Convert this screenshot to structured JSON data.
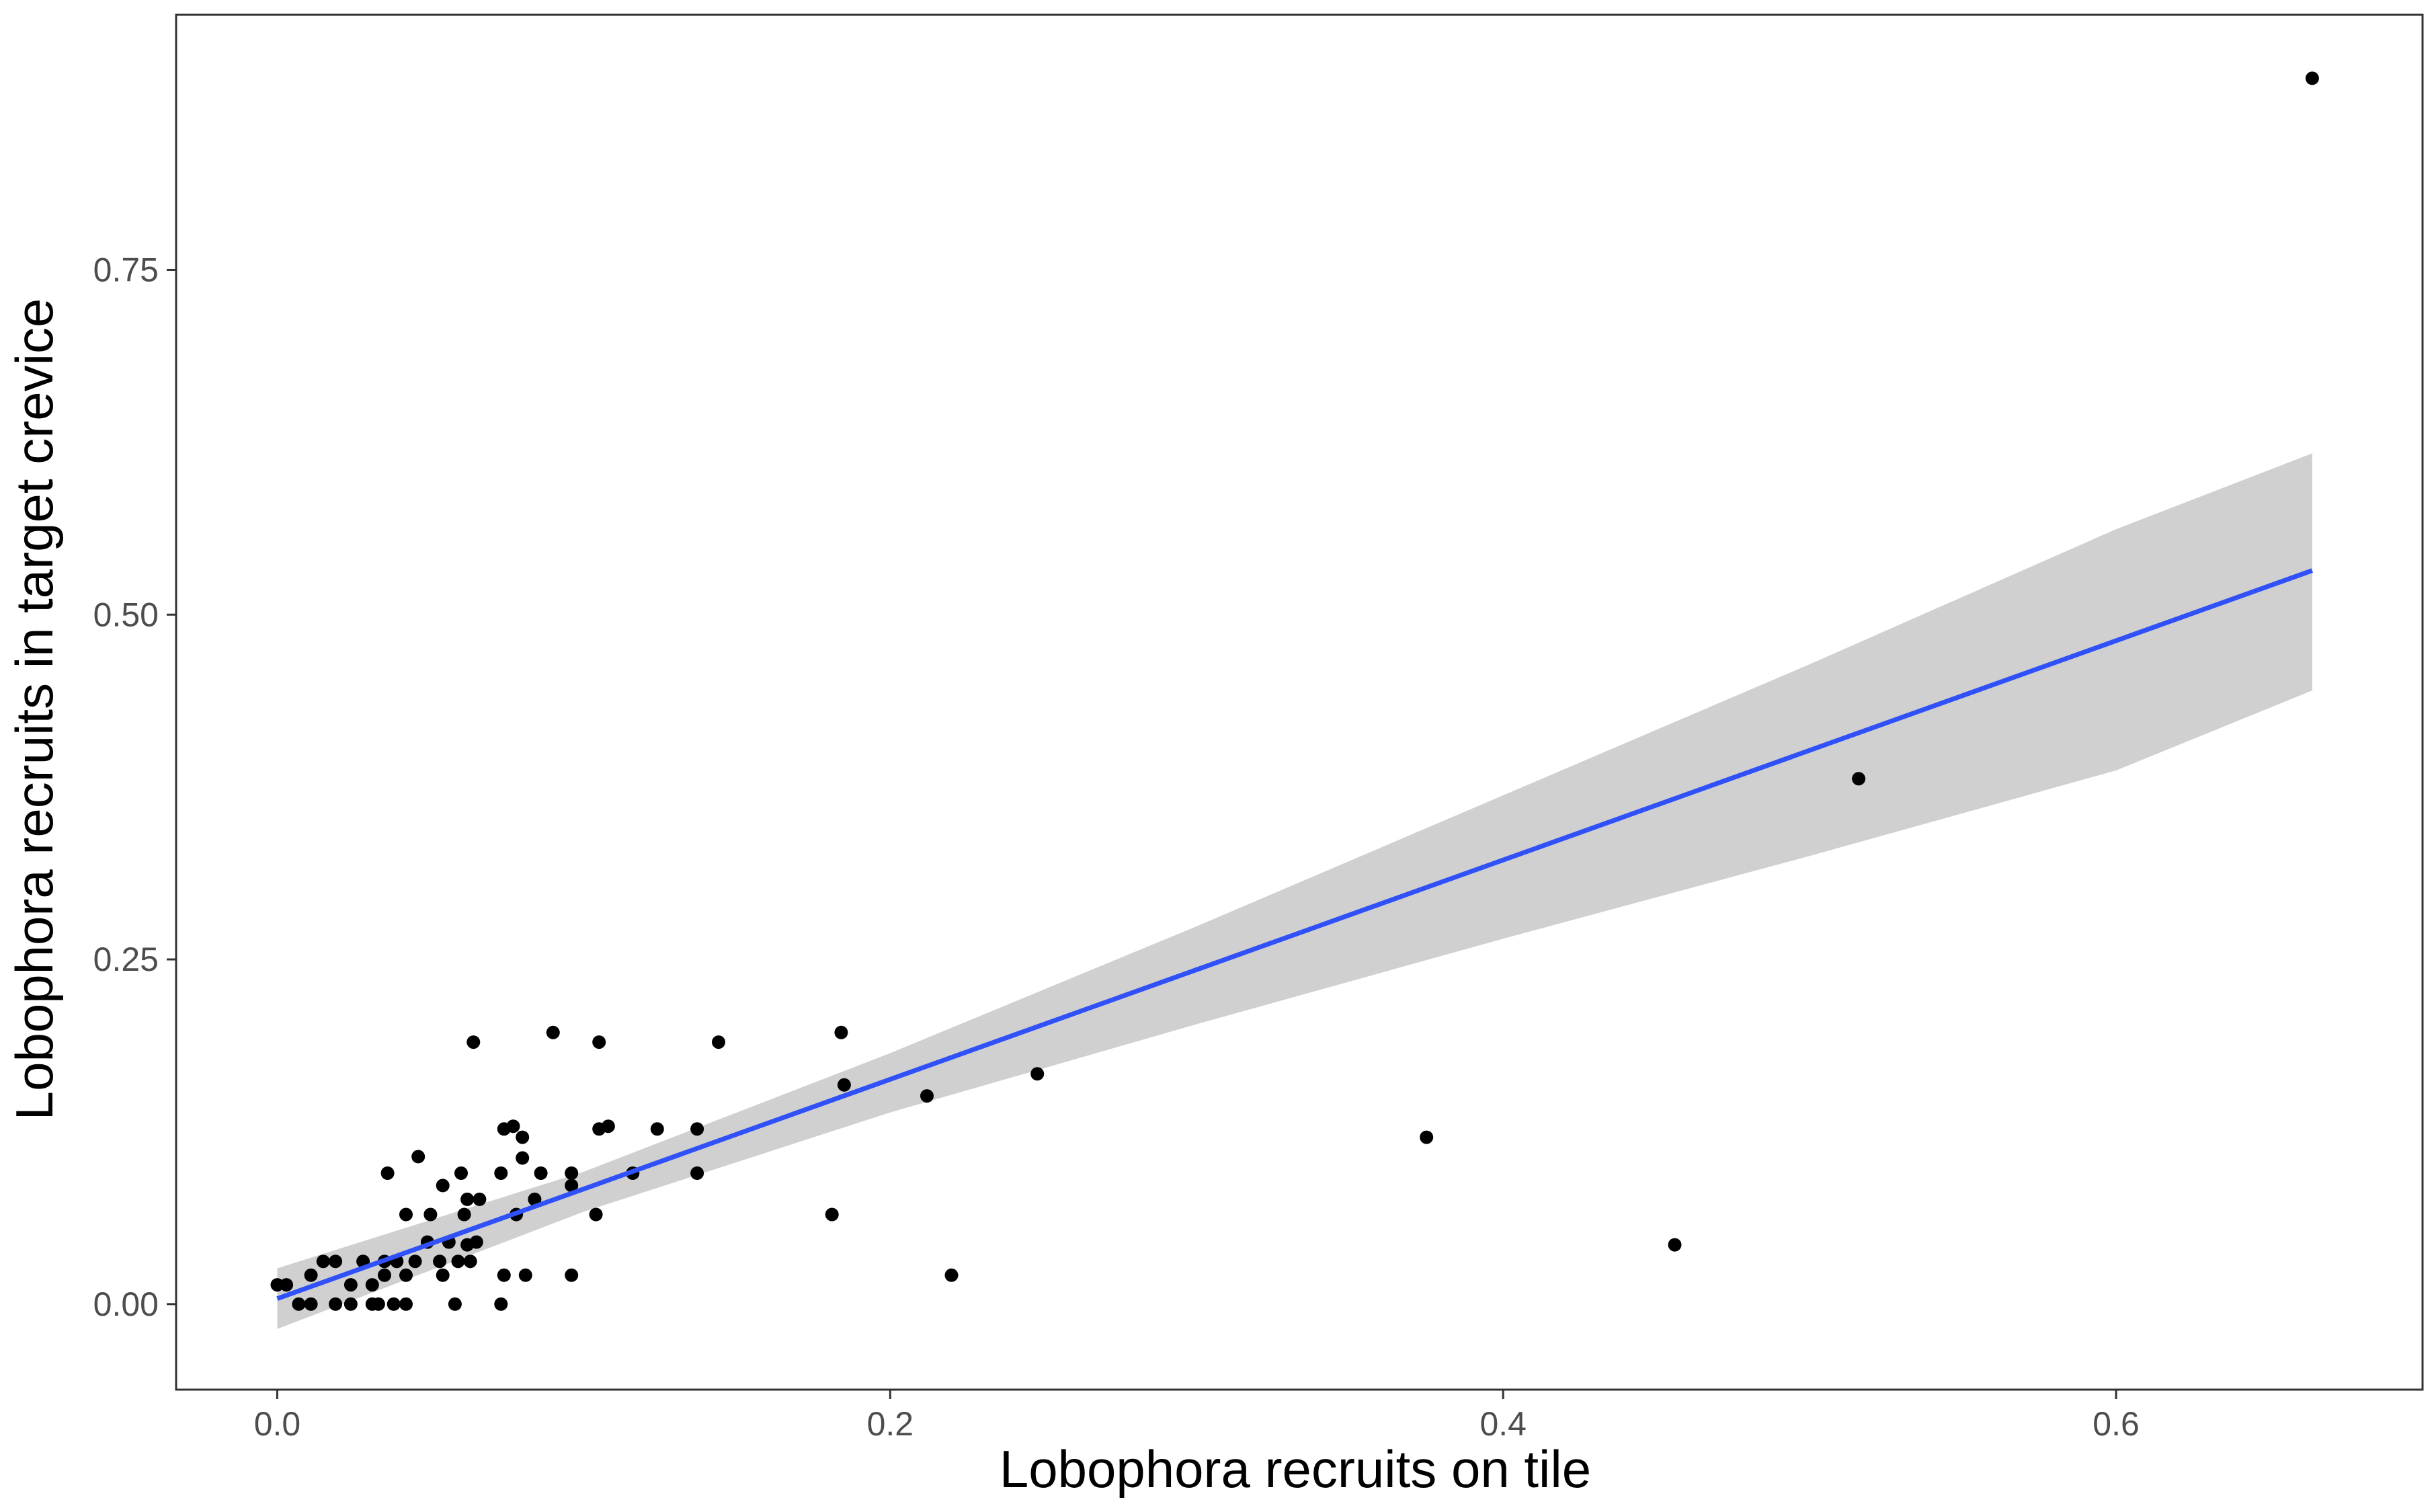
{
  "colors": {
    "background": "#ffffff",
    "panel_border": "#333333",
    "points": "#000000",
    "fit_line": "#3050f8",
    "ribbon": "#c8c8c8",
    "tick_labels": "#4d4d4d"
  },
  "chart_data": {
    "type": "scatter",
    "xlabel": "Lobophora recruits on tile",
    "ylabel": "Lobophora recruits in target crevice",
    "xlim": [
      -0.033,
      0.7
    ],
    "ylim": [
      -0.062,
      0.935
    ],
    "x_ticks": [
      {
        "value": 0.0,
        "label": "0.0"
      },
      {
        "value": 0.2,
        "label": "0.2"
      },
      {
        "value": 0.4,
        "label": "0.4"
      },
      {
        "value": 0.6,
        "label": "0.6"
      }
    ],
    "y_ticks": [
      {
        "value": 0.0,
        "label": "0.00"
      },
      {
        "value": 0.25,
        "label": "0.25"
      },
      {
        "value": 0.5,
        "label": "0.50"
      },
      {
        "value": 0.75,
        "label": "0.75"
      }
    ],
    "grid": false,
    "legend": "none",
    "points": [
      {
        "x": 0.0,
        "y": 0.014
      },
      {
        "x": 0.003,
        "y": 0.014
      },
      {
        "x": 0.007,
        "y": 0.0
      },
      {
        "x": 0.011,
        "y": 0.021
      },
      {
        "x": 0.011,
        "y": 0.0
      },
      {
        "x": 0.015,
        "y": 0.031
      },
      {
        "x": 0.019,
        "y": 0.0
      },
      {
        "x": 0.019,
        "y": 0.031
      },
      {
        "x": 0.024,
        "y": 0.014
      },
      {
        "x": 0.024,
        "y": 0.0
      },
      {
        "x": 0.028,
        "y": 0.031
      },
      {
        "x": 0.031,
        "y": 0.014
      },
      {
        "x": 0.031,
        "y": 0.0
      },
      {
        "x": 0.033,
        "y": 0.0
      },
      {
        "x": 0.035,
        "y": 0.021
      },
      {
        "x": 0.035,
        "y": 0.031
      },
      {
        "x": 0.036,
        "y": 0.095
      },
      {
        "x": 0.038,
        "y": 0.0
      },
      {
        "x": 0.039,
        "y": 0.031
      },
      {
        "x": 0.042,
        "y": 0.065
      },
      {
        "x": 0.042,
        "y": 0.0
      },
      {
        "x": 0.042,
        "y": 0.021
      },
      {
        "x": 0.045,
        "y": 0.031
      },
      {
        "x": 0.046,
        "y": 0.107
      },
      {
        "x": 0.049,
        "y": 0.045
      },
      {
        "x": 0.05,
        "y": 0.065
      },
      {
        "x": 0.053,
        "y": 0.031
      },
      {
        "x": 0.054,
        "y": 0.021
      },
      {
        "x": 0.054,
        "y": 0.086
      },
      {
        "x": 0.056,
        "y": 0.045
      },
      {
        "x": 0.058,
        "y": 0.0
      },
      {
        "x": 0.059,
        "y": 0.031
      },
      {
        "x": 0.06,
        "y": 0.095
      },
      {
        "x": 0.061,
        "y": 0.065
      },
      {
        "x": 0.062,
        "y": 0.043
      },
      {
        "x": 0.062,
        "y": 0.076
      },
      {
        "x": 0.063,
        "y": 0.031
      },
      {
        "x": 0.064,
        "y": 0.19
      },
      {
        "x": 0.065,
        "y": 0.045
      },
      {
        "x": 0.066,
        "y": 0.076
      },
      {
        "x": 0.073,
        "y": 0.095
      },
      {
        "x": 0.073,
        "y": 0.0
      },
      {
        "x": 0.074,
        "y": 0.021
      },
      {
        "x": 0.074,
        "y": 0.127
      },
      {
        "x": 0.077,
        "y": 0.129
      },
      {
        "x": 0.078,
        "y": 0.065
      },
      {
        "x": 0.08,
        "y": 0.106
      },
      {
        "x": 0.08,
        "y": 0.121
      },
      {
        "x": 0.081,
        "y": 0.021
      },
      {
        "x": 0.084,
        "y": 0.076
      },
      {
        "x": 0.086,
        "y": 0.095
      },
      {
        "x": 0.09,
        "y": 0.197
      },
      {
        "x": 0.096,
        "y": 0.021
      },
      {
        "x": 0.096,
        "y": 0.086
      },
      {
        "x": 0.096,
        "y": 0.095
      },
      {
        "x": 0.104,
        "y": 0.065
      },
      {
        "x": 0.105,
        "y": 0.127
      },
      {
        "x": 0.105,
        "y": 0.19
      },
      {
        "x": 0.108,
        "y": 0.129
      },
      {
        "x": 0.116,
        "y": 0.095
      },
      {
        "x": 0.124,
        "y": 0.127
      },
      {
        "x": 0.137,
        "y": 0.095
      },
      {
        "x": 0.137,
        "y": 0.127
      },
      {
        "x": 0.144,
        "y": 0.19
      },
      {
        "x": 0.181,
        "y": 0.065
      },
      {
        "x": 0.184,
        "y": 0.197
      },
      {
        "x": 0.185,
        "y": 0.159
      },
      {
        "x": 0.212,
        "y": 0.151
      },
      {
        "x": 0.22,
        "y": 0.021
      },
      {
        "x": 0.248,
        "y": 0.167
      },
      {
        "x": 0.375,
        "y": 0.121
      },
      {
        "x": 0.456,
        "y": 0.043
      },
      {
        "x": 0.516,
        "y": 0.381
      },
      {
        "x": 0.664,
        "y": 0.889
      }
    ],
    "fit_line": [
      {
        "x": 0.0,
        "y": 0.004
      },
      {
        "x": 0.664,
        "y": 0.532
      }
    ],
    "confidence_band": [
      {
        "x": 0.0,
        "lower": -0.018,
        "upper": 0.026
      },
      {
        "x": 0.1,
        "lower": 0.067,
        "upper": 0.096
      },
      {
        "x": 0.2,
        "lower": 0.139,
        "upper": 0.182
      },
      {
        "x": 0.3,
        "lower": 0.203,
        "upper": 0.274
      },
      {
        "x": 0.4,
        "lower": 0.265,
        "upper": 0.369
      },
      {
        "x": 0.5,
        "lower": 0.325,
        "upper": 0.464
      },
      {
        "x": 0.6,
        "lower": 0.387,
        "upper": 0.562
      },
      {
        "x": 0.664,
        "lower": 0.445,
        "upper": 0.617
      }
    ]
  }
}
